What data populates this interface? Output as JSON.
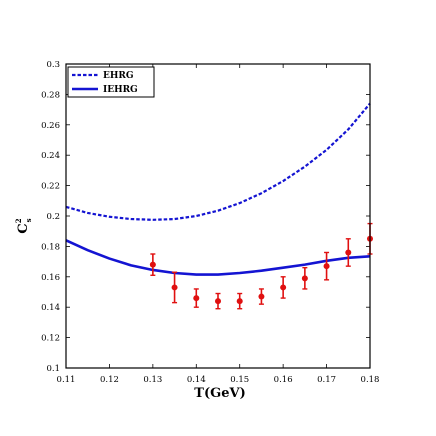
{
  "chart_data": {
    "type": "line",
    "title": "",
    "xlabel": "T(GeV)",
    "ylabel_main": "C",
    "ylabel_sup": "2",
    "ylabel_sub": "s",
    "xlim": [
      0.11,
      0.18
    ],
    "ylim": [
      0.1,
      0.3
    ],
    "xticks": [
      "0.11",
      "0.12",
      "0.13",
      "0.14",
      "0.15",
      "0.16",
      "0.17",
      "0.18"
    ],
    "yticks": [
      "0.1",
      "0.12",
      "0.14",
      "0.16",
      "0.18",
      "0.2",
      "0.22",
      "0.24",
      "0.26",
      "0.28",
      "0.3"
    ],
    "grid": false,
    "legend_position": "top-left",
    "series": [
      {
        "name": "EHRG",
        "style": "dashed",
        "color": "#1414d2",
        "x": [
          0.11,
          0.115,
          0.12,
          0.125,
          0.13,
          0.135,
          0.14,
          0.145,
          0.15,
          0.155,
          0.16,
          0.165,
          0.17,
          0.175,
          0.18
        ],
        "y": [
          0.206,
          0.202,
          0.1995,
          0.198,
          0.1975,
          0.198,
          0.2,
          0.2035,
          0.2085,
          0.215,
          0.223,
          0.2325,
          0.2435,
          0.257,
          0.274
        ]
      },
      {
        "name": "IEHRG",
        "style": "solid",
        "color": "#1414d2",
        "x": [
          0.11,
          0.115,
          0.12,
          0.125,
          0.13,
          0.135,
          0.14,
          0.145,
          0.15,
          0.155,
          0.16,
          0.165,
          0.17,
          0.175,
          0.18
        ],
        "y": [
          0.184,
          0.1775,
          0.172,
          0.1675,
          0.1645,
          0.1625,
          0.1615,
          0.1615,
          0.1625,
          0.164,
          0.166,
          0.168,
          0.1705,
          0.1725,
          0.1735
        ]
      }
    ],
    "points": {
      "name": "",
      "color": "#e01010",
      "x": [
        0.13,
        0.135,
        0.14,
        0.145,
        0.15,
        0.155,
        0.16,
        0.165,
        0.17,
        0.175,
        0.18
      ],
      "y": [
        0.168,
        0.153,
        0.146,
        0.144,
        0.144,
        0.147,
        0.153,
        0.159,
        0.167,
        0.176,
        0.185
      ],
      "err": [
        0.007,
        0.01,
        0.006,
        0.005,
        0.005,
        0.005,
        0.007,
        0.007,
        0.009,
        0.009,
        0.01
      ]
    }
  }
}
